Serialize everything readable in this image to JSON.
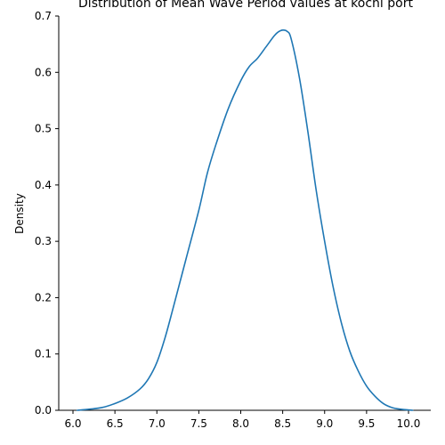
{
  "chart_data": {
    "type": "line",
    "title": "Distribution of Mean Wave Period values at kochi port",
    "xlabel": "",
    "ylabel": "Density",
    "xlim": [
      5.95,
      10.25
    ],
    "ylim": [
      0,
      0.7
    ],
    "grid": false,
    "x_ticks": [
      6.0,
      6.5,
      7.0,
      7.5,
      8.0,
      8.5,
      9.0,
      9.5,
      10.0
    ],
    "x_tick_labels": [
      "6.0",
      "6.5",
      "7.0",
      "7.5",
      "8.0",
      "8.5",
      "9.0",
      "9.5",
      "10.0"
    ],
    "y_ticks": [
      0.0,
      0.1,
      0.2,
      0.3,
      0.4,
      0.5,
      0.6,
      0.7
    ],
    "y_tick_labels": [
      "0.0",
      "0.1",
      "0.2",
      "0.3",
      "0.4",
      "0.5",
      "0.6",
      "0.7"
    ],
    "series": [
      {
        "color": "#1f77b4",
        "x": [
          6.05,
          6.2,
          6.35,
          6.5,
          6.65,
          6.8,
          6.9,
          7.0,
          7.1,
          7.2,
          7.35,
          7.5,
          7.6,
          7.7,
          7.85,
          8.0,
          8.1,
          8.2,
          8.3,
          8.4,
          8.45,
          8.5,
          8.55,
          8.6,
          8.7,
          8.8,
          8.9,
          9.0,
          9.1,
          9.2,
          9.3,
          9.4,
          9.5,
          9.6,
          9.7,
          9.8,
          9.9,
          10.05
        ],
        "y": [
          0.0,
          0.002,
          0.005,
          0.012,
          0.022,
          0.038,
          0.056,
          0.085,
          0.13,
          0.185,
          0.27,
          0.355,
          0.42,
          0.47,
          0.535,
          0.585,
          0.61,
          0.625,
          0.645,
          0.665,
          0.672,
          0.675,
          0.673,
          0.66,
          0.59,
          0.495,
          0.39,
          0.3,
          0.22,
          0.155,
          0.105,
          0.07,
          0.043,
          0.025,
          0.012,
          0.005,
          0.002,
          0.0
        ]
      }
    ]
  }
}
